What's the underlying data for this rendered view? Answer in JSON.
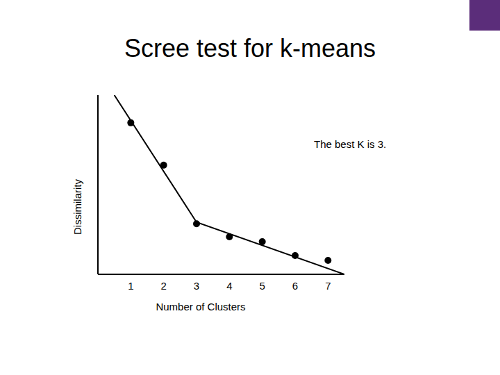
{
  "chart_data": {
    "type": "scatter",
    "title": "Scree test for k-means",
    "x_label": "Number of Clusters",
    "y_label": "Dissimilarity",
    "annotation": "The best K is 3.",
    "x": [
      1,
      2,
      3,
      4,
      5,
      6,
      7
    ],
    "series": [
      {
        "type": "scatter",
        "marker": "circle",
        "color": "#000000",
        "values": [
          93,
          67,
          31,
          23,
          20,
          11.5,
          8.5
        ]
      },
      {
        "type": "line",
        "line_style": "solid",
        "color": "#000000",
        "x": [
          0.5,
          3,
          7.5
        ],
        "values": [
          110,
          32,
          0
        ]
      }
    ],
    "xlim": [
      0,
      7.5
    ],
    "ylim": [
      0,
      110
    ],
    "xticks": [
      1,
      2,
      3,
      4,
      5,
      6,
      7
    ],
    "tick_labels": "x",
    "grid": false
  }
}
